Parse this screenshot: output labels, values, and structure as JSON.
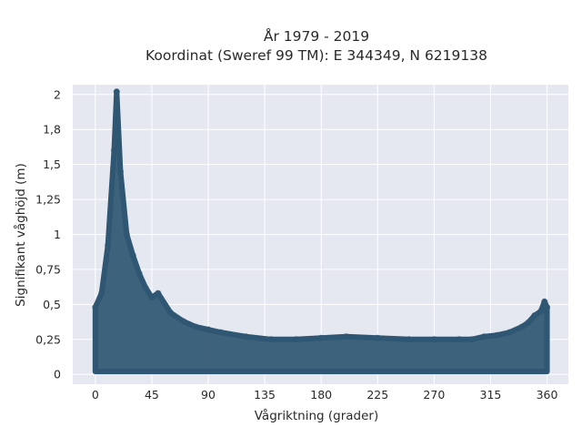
{
  "chart_data": {
    "type": "scatter",
    "title": "År 1979 - 2019",
    "subtitle": "Koordinat (Sweref 99 TM): E 344349, N 6219138",
    "xlabel": "Vågriktning (grader)",
    "ylabel": "Signifikant våghöjd (m)",
    "xlim": [
      -18,
      377
    ],
    "ylim": [
      -0.07,
      2.07
    ],
    "x_ticks": [
      0,
      45,
      90,
      135,
      180,
      225,
      270,
      315,
      360
    ],
    "x_tick_labels": [
      "0",
      "45",
      "90",
      "135",
      "180",
      "225",
      "270",
      "315",
      "360"
    ],
    "y_ticks": [
      0,
      0.25,
      0.5,
      0.75,
      1,
      1.25,
      1.5,
      1.75,
      2
    ],
    "y_tick_labels": [
      "0",
      "0,25",
      "0,5",
      "0,75",
      "1",
      "1,25",
      "1,5",
      "1,8",
      "2"
    ],
    "grid": true,
    "marker_color": "#2f5672",
    "plot_background": "#e5e8f0",
    "x": [
      0,
      5,
      10,
      15,
      17,
      20,
      25,
      30,
      35,
      40,
      45,
      50,
      60,
      70,
      80,
      90,
      100,
      120,
      140,
      160,
      180,
      200,
      225,
      250,
      270,
      290,
      300,
      310,
      320,
      330,
      340,
      345,
      350,
      355,
      358,
      360
    ],
    "y": [
      0.48,
      0.58,
      0.92,
      1.6,
      2.02,
      1.45,
      1.0,
      0.85,
      0.72,
      0.62,
      0.55,
      0.58,
      0.44,
      0.38,
      0.34,
      0.32,
      0.3,
      0.27,
      0.25,
      0.25,
      0.26,
      0.27,
      0.26,
      0.25,
      0.25,
      0.25,
      0.25,
      0.27,
      0.28,
      0.3,
      0.34,
      0.37,
      0.42,
      0.45,
      0.52,
      0.48
    ]
  }
}
